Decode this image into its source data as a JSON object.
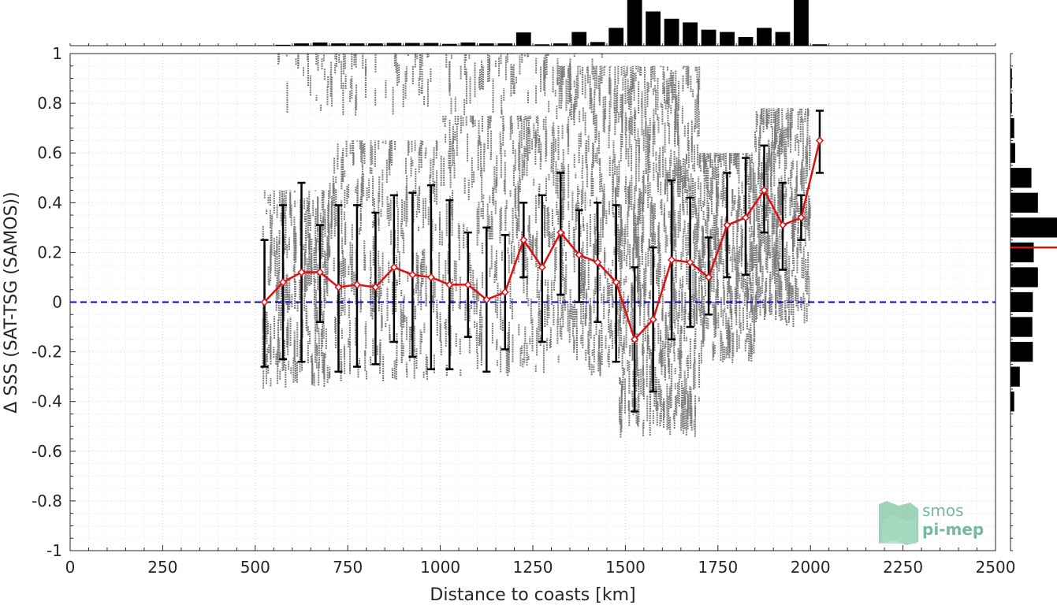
{
  "chart_data": {
    "type": "line",
    "title": "",
    "xlabel": "Distance to coasts [km]",
    "ylabel": "Δ SSS (SAT-TSG (SAMOS))",
    "xlim": [
      0,
      2500
    ],
    "ylim": [
      -1,
      1
    ],
    "x_ticks": [
      "0",
      "250",
      "500",
      "750",
      "1000",
      "1250",
      "1500",
      "1750",
      "2000",
      "2250",
      "2500"
    ],
    "y_ticks": [
      "1",
      "0.8",
      "0.6",
      "0.4",
      "0.2",
      "0",
      "-0.2",
      "-0.4",
      "-0.6",
      "-0.8",
      "-1"
    ],
    "grid": true,
    "reference_line": {
      "y": 0,
      "style": "dashed",
      "color": "#0000cc"
    },
    "series": [
      {
        "type": "line-errorbar",
        "color": "#dd1111",
        "errorbar_color": "#000000",
        "x": [
          525,
          575,
          625,
          675,
          725,
          775,
          825,
          875,
          925,
          975,
          1025,
          1075,
          1125,
          1175,
          1225,
          1275,
          1325,
          1375,
          1425,
          1475,
          1525,
          1575,
          1625,
          1675,
          1725,
          1775,
          1825,
          1875,
          1925,
          1975,
          2025
        ],
        "y": [
          0.0,
          0.08,
          0.12,
          0.12,
          0.06,
          0.07,
          0.06,
          0.14,
          0.11,
          0.1,
          0.07,
          0.07,
          0.01,
          0.04,
          0.25,
          0.14,
          0.28,
          0.19,
          0.16,
          0.08,
          -0.15,
          -0.07,
          0.17,
          0.16,
          0.1,
          0.31,
          0.34,
          0.45,
          0.31,
          0.34,
          0.65
        ],
        "err_low": [
          -0.26,
          -0.23,
          -0.24,
          -0.08,
          -0.28,
          -0.26,
          -0.25,
          -0.16,
          -0.22,
          -0.27,
          -0.27,
          -0.14,
          -0.28,
          -0.19,
          0.1,
          -0.16,
          0.03,
          0.0,
          -0.08,
          -0.24,
          -0.44,
          -0.36,
          -0.15,
          -0.1,
          -0.05,
          0.1,
          0.11,
          0.28,
          0.13,
          0.25,
          0.52
        ],
        "err_high": [
          0.25,
          0.39,
          0.48,
          0.31,
          0.39,
          0.39,
          0.36,
          0.43,
          0.44,
          0.47,
          0.41,
          0.28,
          0.3,
          0.27,
          0.4,
          0.43,
          0.52,
          0.37,
          0.4,
          0.39,
          0.14,
          0.22,
          0.49,
          0.42,
          0.26,
          0.52,
          0.58,
          0.63,
          0.48,
          0.43,
          0.77
        ]
      }
    ],
    "scatter_clusters": [
      {
        "x0": 520,
        "x1": 700,
        "ymin": -0.35,
        "ymax": 0.45,
        "n": 260
      },
      {
        "x0": 700,
        "x1": 1000,
        "ymin": -0.32,
        "ymax": 0.65,
        "n": 300
      },
      {
        "x0": 1000,
        "x1": 1300,
        "ymin": -0.3,
        "ymax": 0.75,
        "n": 300
      },
      {
        "x0": 1300,
        "x1": 1480,
        "ymin": -0.3,
        "ymax": 0.95,
        "n": 300
      },
      {
        "x0": 1480,
        "x1": 1700,
        "ymin": -0.55,
        "ymax": 0.95,
        "n": 600
      },
      {
        "x0": 1700,
        "x1": 1850,
        "ymin": -0.25,
        "ymax": 0.6,
        "n": 300
      },
      {
        "x0": 1850,
        "x1": 2000,
        "ymin": -0.1,
        "ymax": 0.78,
        "n": 320
      },
      {
        "x0": 560,
        "x1": 1450,
        "ymin": 0.75,
        "ymax": 1.0,
        "n": 140
      }
    ],
    "top_histogram": {
      "bins": [
        475,
        525,
        575,
        625,
        675,
        725,
        775,
        825,
        875,
        925,
        975,
        1025,
        1075,
        1125,
        1175,
        1225,
        1275,
        1325,
        1375,
        1425,
        1475,
        1525,
        1575,
        1625,
        1675,
        1725,
        1775,
        1825,
        1875,
        1925,
        1975,
        2025
      ],
      "values": [
        0.01,
        0.01,
        0.02,
        0.05,
        0.07,
        0.05,
        0.05,
        0.05,
        0.06,
        0.06,
        0.06,
        0.04,
        0.07,
        0.05,
        0.05,
        0.29,
        0.03,
        0.05,
        0.3,
        0.08,
        0.39,
        1.0,
        0.75,
        0.59,
        0.51,
        0.35,
        0.3,
        0.19,
        0.39,
        0.3,
        1.0,
        0.03
      ]
    },
    "right_histogram": {
      "bins": [
        0.9,
        0.8,
        0.7,
        0.6,
        0.5,
        0.4,
        0.3,
        0.2,
        0.1,
        0.0,
        -0.1,
        -0.2,
        -0.3,
        -0.4,
        -0.5
      ],
      "values": [
        0.03,
        0.03,
        0.08,
        0.1,
        0.45,
        0.59,
        1.0,
        0.5,
        0.59,
        0.48,
        0.47,
        0.48,
        0.2,
        0.08,
        0.01
      ],
      "median": 0.22,
      "median_color": "#dd1111"
    }
  },
  "logo": {
    "line1": "smos",
    "line2": "pi-mep"
  }
}
